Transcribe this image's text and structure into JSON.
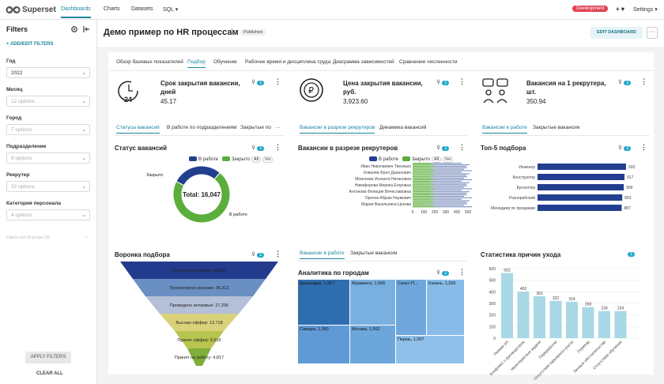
{
  "nav": {
    "brand": "Superset",
    "items": [
      "Dashboards",
      "Charts",
      "Datasets",
      "SQL ▾"
    ],
    "env": "Development",
    "plus": "+ ▾",
    "settings": "Settings ▾"
  },
  "sidebar": {
    "title": "Filters",
    "add": "+ ADD/EDIT FILTERS",
    "filters": [
      {
        "label": "Год",
        "value": "2022",
        "placeholder": false
      },
      {
        "label": "Месяц",
        "value": "12 options",
        "placeholder": true
      },
      {
        "label": "Город",
        "value": "7 options",
        "placeholder": true
      },
      {
        "label": "Подразделение",
        "value": "8 options",
        "placeholder": true
      },
      {
        "label": "Рекрутер",
        "value": "32 options",
        "placeholder": true
      },
      {
        "label": "Категория персонала",
        "value": "4 options",
        "placeholder": true
      }
    ],
    "out_of_scope": "Filters out of scope (0)",
    "apply": "APPLY FILTERS",
    "clear": "CLEAR ALL"
  },
  "dashboard": {
    "title": "Демо пример по HR процессам",
    "status": "Published",
    "edit": "EDIT DASHBOARD",
    "more": "···",
    "tabs": [
      "Обзор базовых показателей",
      "Подбор",
      "Обучение",
      "Рабочее время и дисциплина труда",
      "Диаграмма зависимостей",
      "Сравнение численности"
    ]
  },
  "kpis": [
    {
      "title": "Срок закрытия вакансии, дней",
      "value": "45.17",
      "icon": "clock-24-icon"
    },
    {
      "title": "Цена закрытия вакансии, руб.",
      "value": "3,923.60",
      "icon": "ruble-coin-icon"
    },
    {
      "title": "Вакансия на 1 рекрутера, шт.",
      "value": "350.94",
      "icon": "recruiter-chat-icon"
    }
  ],
  "subtabs1": [
    "Статусы вакансий",
    "В работе по подразделениям",
    "Закрытые по",
    "···"
  ],
  "subtabs2": [
    "Вакансии в разрезе рекрутеров",
    "Динамика вакансий"
  ],
  "subtabs3": [
    "Вакансии в работе",
    "Закрытые вакансии"
  ],
  "subtabs4": [
    "Вакансии в работе",
    "Закрытые вакансии"
  ],
  "filter_count": "1",
  "chart_data": [
    {
      "type": "pie",
      "title": "Статус вакансий",
      "legend": [
        "В работе",
        "Закрыто"
      ],
      "controls": [
        "All",
        "Inv"
      ],
      "labels": [
        "Закрыто",
        "В работе"
      ],
      "values": [
        4600,
        11447
      ],
      "total_label": "Total: 16,047",
      "colors": [
        "#223f8f",
        "#5cae3c"
      ]
    },
    {
      "type": "bar",
      "title": "Вакансии в разрезе рекрутеров",
      "orientation": "horizontal",
      "legend": [
        "В работе",
        "Закрыто"
      ],
      "controls": [
        "All",
        "Inv"
      ],
      "categories": [
        "Иван Николаевич Тихонько",
        "Ковалёв Фрол Данилович",
        "Моисеева Иоланта Натановна",
        "Никифорова Мерика Егоровна",
        "Антонова Фелиция Вячеславовна",
        "Орехов Абрам Наумович",
        "Мария Васильевна Цекова"
      ],
      "x_ticks": [
        "0",
        "100",
        "200",
        "300",
        "400",
        "500"
      ]
    },
    {
      "type": "bar",
      "title": "Топ-5 подбора",
      "orientation": "horizontal",
      "categories": [
        "Инженер",
        "Конструктор",
        "Бухгалтер",
        "Разнорабочий",
        "Менеджер по продажам"
      ],
      "values": [
        933,
        917,
        909,
        893,
        887
      ]
    },
    {
      "type": "funnel",
      "title": "Воронка подбора",
      "steps": [
        {
          "label": "Получено откликов",
          "value": "45,851"
        },
        {
          "label": "Просмотрено резюме",
          "value": "36,312"
        },
        {
          "label": "Проведено интервью",
          "value": "27,295"
        },
        {
          "label": "Выслан оффер",
          "value": "13,718"
        },
        {
          "label": "Принят оффер",
          "value": "6,619"
        },
        {
          "label": "Принят на работу",
          "value": "4,817"
        }
      ]
    },
    {
      "type": "heatmap",
      "subtype": "treemap",
      "title": "Аналитика по городам",
      "cells": [
        {
          "label": "Краснодар",
          "value": "1,917"
        },
        {
          "label": "Мурманск",
          "value": "1,566"
        },
        {
          "label": "Санкт-П...",
          "value": ""
        },
        {
          "label": "Казань",
          "value": "1,536"
        },
        {
          "label": "Самара",
          "value": "1,583"
        },
        {
          "label": "Москва",
          "value": "1,562"
        },
        {
          "label": "Пермь",
          "value": "1,507"
        }
      ]
    },
    {
      "type": "bar",
      "title": "Статистика причин ухода",
      "categories": [
        "Низкая з/п",
        "Конфликт с руководством",
        "Неинтересные задачи",
        "Переработки",
        "Отсутствие карьерного роста",
        "Переезд",
        "Личные обстоятельства",
        "Отсутствие обучения"
      ],
      "values": [
        562,
        402,
        362,
        322,
        314,
        268,
        234,
        234
      ],
      "y_ticks": [
        "0",
        "100",
        "200",
        "300",
        "400",
        "500",
        "600"
      ],
      "ylim": [
        0,
        600
      ]
    }
  ]
}
